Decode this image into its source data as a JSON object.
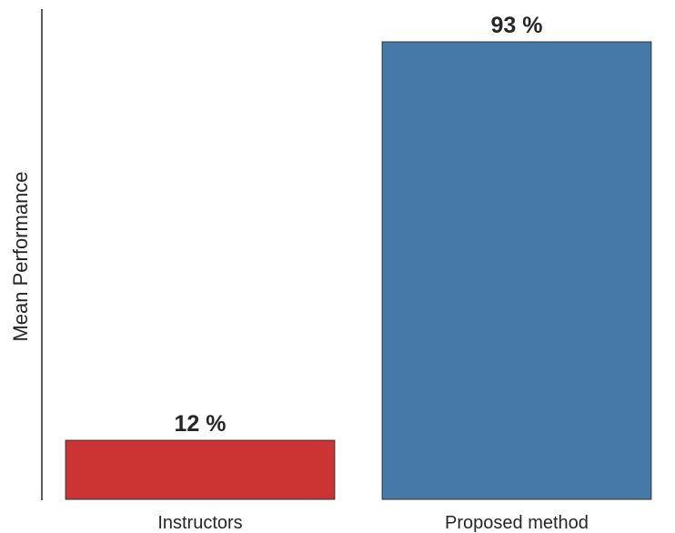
{
  "chart_data": {
    "type": "bar",
    "title": "",
    "xlabel": "",
    "ylabel": "Mean Performance",
    "categories": [
      "Instructors",
      "Proposed method"
    ],
    "values": [
      12,
      93
    ],
    "value_labels": [
      "12 %",
      "93 %"
    ],
    "colors": [
      "#cc3333",
      "#4679a8"
    ],
    "ylim": [
      0,
      100
    ],
    "grid": false,
    "legend": "none"
  }
}
